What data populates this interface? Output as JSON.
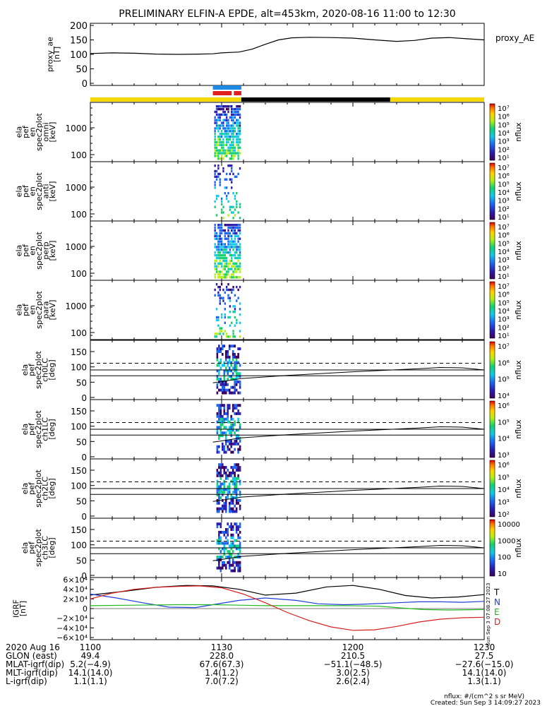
{
  "title": "PRELIMINARY ELFIN-A EPDE, alt=453km, 2020-08-16 11:00 to 12:30",
  "colors": {
    "axis": "#000000",
    "ae_line": "#000000",
    "bar_yellow": "#f5d800",
    "bar_black": "#000000",
    "bar_blue": "#1e88e5",
    "bar_red": "#e02020",
    "igrf_T": "#000000",
    "igrf_N": "#1f3fd6",
    "igrf_E": "#22b822",
    "igrf_D": "#d61f1f"
  },
  "time_axis": {
    "start_minutes": 0,
    "end_minutes": 90,
    "major_tick_minutes": [
      0,
      30,
      60,
      90
    ],
    "tick_labels": [
      "1100",
      "1130",
      "1200",
      "1230"
    ]
  },
  "proxy_ae": {
    "ylabel": "proxy_ae\n[nT]",
    "legend": "proxy_AE",
    "ylim": [
      0,
      200
    ],
    "yticks": [
      0,
      50,
      100,
      150,
      200
    ],
    "tick_labels": [
      "0",
      "50",
      "100",
      "150",
      "200"
    ],
    "t": [
      0,
      5,
      10,
      15,
      20,
      25,
      28,
      30,
      34,
      37,
      40,
      43,
      46,
      50,
      55,
      60,
      65,
      70,
      74,
      78,
      82,
      86,
      90
    ],
    "v": [
      103,
      105,
      104,
      101,
      100,
      101,
      102,
      105,
      108,
      118,
      135,
      150,
      157,
      159,
      158,
      156,
      150,
      145,
      148,
      156,
      158,
      154,
      150
    ]
  },
  "status_bars": {
    "yellow_segments": [
      [
        0,
        90
      ]
    ],
    "black_segments": [
      [
        34.5,
        68.5
      ]
    ],
    "blue_segments": [
      [
        28,
        34.5
      ]
    ],
    "red_segments": [
      [
        28,
        32.3
      ],
      [
        32.8,
        34.5
      ]
    ]
  },
  "spectrogram_panels": [
    {
      "ylabel": "ela\npef\nen\nspec2plot\nomni\n[keV]",
      "cbar_label": "nflux",
      "yticks": [
        "1000",
        "100"
      ],
      "cbar_ticks": [
        "10⁷",
        "10⁶",
        "10⁵",
        "10⁴",
        "10³",
        "10²",
        "10¹"
      ]
    },
    {
      "ylabel": "ela\npef\nen\nspec2plot\nanti\n[keV]",
      "cbar_label": "nflux",
      "yticks": [
        "1000",
        "100"
      ],
      "cbar_ticks": [
        "10⁷",
        "10⁶",
        "10⁵",
        "10⁴",
        "10³",
        "10²",
        "10¹"
      ]
    },
    {
      "ylabel": "ela\npef\nen\nspec2plot\nperp\n[keV]",
      "cbar_label": "nflux",
      "yticks": [
        "1000",
        "100"
      ],
      "cbar_ticks": [
        "10⁷",
        "10⁶",
        "10⁵",
        "10⁴",
        "10³",
        "10²",
        "10¹"
      ]
    },
    {
      "ylabel": "ela\npef\nen\nspec2plot\npara\n[keV]",
      "cbar_label": "nflux",
      "yticks": [
        "1000",
        "100"
      ],
      "cbar_ticks": [
        "10⁷",
        "10⁶",
        "10⁵",
        "10⁴",
        "10³",
        "10²",
        "10¹"
      ]
    }
  ],
  "pitch_panels": [
    {
      "ylabel": "ela\npef\nspec2plot\nch0LC\n[deg]",
      "cbar_label": "nflux",
      "cbar_ticks": [
        "10⁷",
        "10⁶",
        "10⁵",
        "10⁴"
      ]
    },
    {
      "ylabel": "ela\npef\nspec2plot\nch1LC\n[deg]",
      "cbar_label": "nflux",
      "cbar_ticks": [
        "10⁶",
        "10⁵",
        "10⁴",
        "10³"
      ]
    },
    {
      "ylabel": "ela\npef\nspec2plot\nch2LC\n[deg]",
      "cbar_label": "nflux",
      "cbar_ticks": [
        "10⁶",
        "10⁵",
        "10⁴",
        "10³",
        "10²"
      ]
    },
    {
      "ylabel": "ela\npef\nspec2plot\nch3LC\n[deg]",
      "cbar_label": "nflux",
      "cbar_ticks": [
        "10000",
        "1000",
        "100",
        "10"
      ]
    }
  ],
  "pitch_axis": {
    "ylim": [
      0,
      180
    ],
    "yticks": [
      0,
      50,
      100,
      150
    ],
    "tick_labels": [
      "0",
      "50",
      "100",
      "150"
    ],
    "loss_cone_t": [
      28,
      30,
      34.5,
      45,
      60,
      75,
      80,
      85,
      90
    ],
    "loss_cone_deg": [
      48,
      52,
      62,
      72,
      84,
      94,
      98,
      97,
      90
    ],
    "solid_lines_deg": [
      71,
      90
    ],
    "dashed_line_deg": 112
  },
  "igrf": {
    "ylabel": "IGRF\n[nT]",
    "ylim": [
      -60000,
      60000
    ],
    "yticks": [
      -60000,
      -40000,
      -20000,
      0,
      20000,
      40000,
      60000
    ],
    "tick_labels": [
      "−6×10⁴",
      "−4×10⁴",
      "−2×10⁴",
      "0",
      "2×10⁴",
      "4×10⁴",
      "6×10⁴"
    ],
    "legend": [
      "T",
      "N",
      "E",
      "D"
    ],
    "side_note": "Sun Sep  3 07:08:27 2023",
    "series": [
      {
        "name": "T",
        "color_key": "igrf_T",
        "t": [
          0,
          8,
          15,
          22,
          28,
          34,
          40,
          47,
          54,
          60,
          66,
          72,
          78,
          84,
          90
        ],
        "v": [
          28000,
          36000,
          44000,
          48000,
          47000,
          40000,
          28000,
          32000,
          45000,
          48000,
          40000,
          27000,
          22000,
          24000,
          29000
        ]
      },
      {
        "name": "N",
        "color_key": "igrf_N",
        "t": [
          0,
          6,
          12,
          18,
          24,
          28,
          34,
          40,
          47,
          52,
          58,
          62,
          70,
          75,
          80,
          85,
          90
        ],
        "v": [
          30000,
          22000,
          12000,
          3000,
          2000,
          8000,
          17000,
          22000,
          17000,
          10000,
          8000,
          9000,
          12000,
          14000,
          14000,
          13000,
          15000
        ]
      },
      {
        "name": "E",
        "color_key": "igrf_E",
        "t": [
          0,
          10,
          20,
          28,
          34,
          40,
          50,
          58,
          66,
          70,
          76,
          82,
          90
        ],
        "v": [
          6000,
          7000,
          8000,
          8000,
          7000,
          6000,
          6000,
          6000,
          5000,
          2000,
          -2000,
          -3000,
          -2000
        ]
      },
      {
        "name": "D",
        "color_key": "igrf_D",
        "t": [
          0,
          5,
          10,
          15,
          20,
          25,
          30,
          35,
          40,
          45,
          50,
          55,
          60,
          65,
          70,
          75,
          80,
          85,
          90
        ],
        "v": [
          20000,
          32000,
          40000,
          44000,
          46000,
          47000,
          43000,
          30000,
          12000,
          -8000,
          -25000,
          -38000,
          -45000,
          -44000,
          -37000,
          -28000,
          -22000,
          -19000,
          -18000
        ]
      }
    ]
  },
  "ephemeris": {
    "labels": [
      "2020 Aug 16",
      "GLON (east)",
      "MLAT-igrf(dip)",
      "MLT-igrf(dip)",
      "L-igrf(dip)"
    ],
    "columns": [
      {
        "tick": "1100",
        "values": [
          "49.4",
          "5.2(−4.9)",
          "14.1(14.0)",
          "1.1(1.1)"
        ]
      },
      {
        "tick": "1130",
        "values": [
          "228.0",
          "67.6(67.3)",
          "1.4(1.2)",
          "7.0(7.2)"
        ]
      },
      {
        "tick": "1200",
        "values": [
          "210.5",
          "−51.1(−48.5)",
          "3.0(2.5)",
          "2.6(2.4)"
        ]
      },
      {
        "tick": "1230",
        "values": [
          "27.5",
          "−27.6(−15.0)",
          "14.1(14.0)",
          "1.3(1.1)"
        ]
      }
    ]
  },
  "footer": {
    "units": "nflux: #/(cm^2 s sr MeV)",
    "created": "Created: Sun Sep  3 14:09:27 2023"
  }
}
